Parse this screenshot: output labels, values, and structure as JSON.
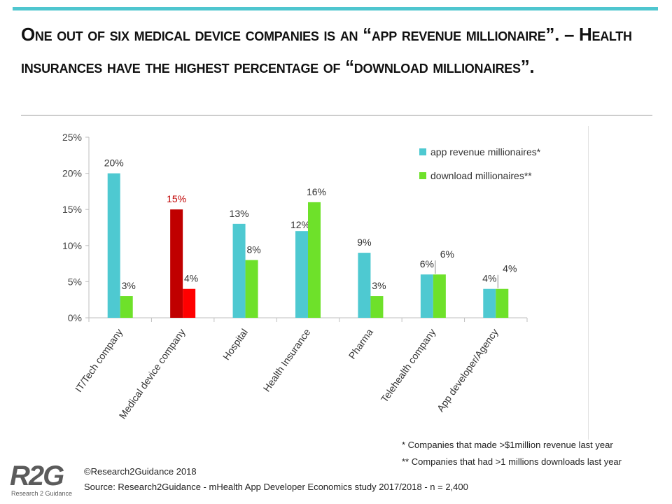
{
  "title": "One out of six medical device companies is an “app revenue millionaire”. – Health insurances have the highest percentage of “download millionaires”.",
  "footnotes": [
    "* Companies that made >$1million revenue last year",
    "** Companies that had >1 millions downloads last year"
  ],
  "copyright": "©Research2Guidance 2018",
  "source": "Source:  Research2Guidance - mHealth App Developer Economics study 2017/2018 - n = 2,400",
  "logo": {
    "mark": "R2G",
    "subtitle": "Research 2 Guidance"
  },
  "colors": {
    "revenue": "#4ec9d1",
    "download": "#6ee12a",
    "highlight_revenue": "#c00000",
    "highlight_download": "#ff0000",
    "highlight_label": "#c00000"
  },
  "chart_data": {
    "type": "bar",
    "title": "",
    "xlabel": "",
    "ylabel": "",
    "ylim": [
      0,
      25
    ],
    "yticks": [
      "0%",
      "5%",
      "10%",
      "15%",
      "20%",
      "25%"
    ],
    "grid": false,
    "legend": "top-right",
    "categories": [
      "IT/Tech company",
      "Medical device company",
      "Hospital",
      "Health Insurance",
      "Pharma",
      "Telehealth company",
      "App developer/Agency"
    ],
    "highlight_category": "Medical device company",
    "series": [
      {
        "name": "app revenue millionaires*",
        "values": [
          20,
          15,
          13,
          12,
          9,
          6,
          4
        ],
        "labels": [
          "20%",
          "15%",
          "13%",
          "12%",
          "9%",
          "6%",
          "4%"
        ]
      },
      {
        "name": "download millionaires**",
        "values": [
          3,
          4,
          8,
          16,
          3,
          6,
          4
        ],
        "labels": [
          "3%",
          "4%",
          "8%",
          "16%",
          "3%",
          "6%",
          "4%"
        ]
      }
    ]
  }
}
